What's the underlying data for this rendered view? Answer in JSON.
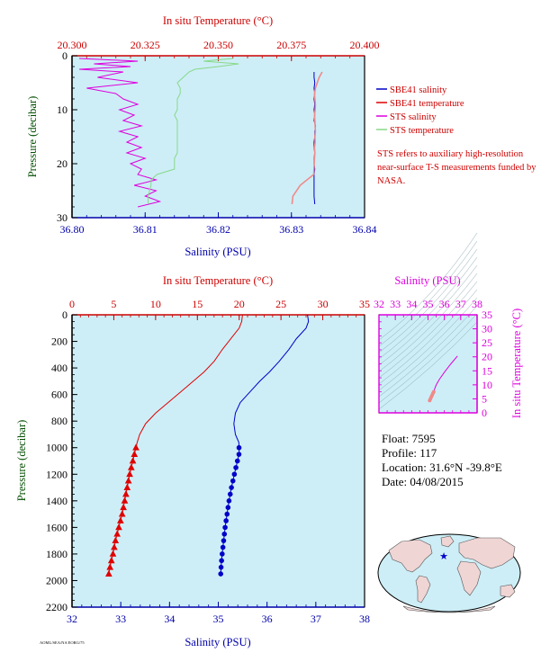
{
  "colors": {
    "plot_bg": "#cdeef7",
    "red": "#e00000",
    "blue": "#0000c8",
    "magenta": "#dd00dd",
    "sbe_temp": "#f08a8a",
    "sts_temp": "#88d888",
    "axis_blue": "#0000aa",
    "axis_red": "#cc0000",
    "axis_green": "#004d00",
    "stroke": "#000000"
  },
  "legend": [
    {
      "label": "SBE41 salinity",
      "color": "#0000c8"
    },
    {
      "label": "SBE41 temperature",
      "color": "#e00000"
    },
    {
      "label": "STS salinity",
      "color": "#dd00dd"
    },
    {
      "label": "STS temperature",
      "color": "#88d888"
    }
  ],
  "note": "STS refers to auxiliary high-resolution near-surface T-S measurements funded by NASA.",
  "info": {
    "float": "Float: 7595",
    "profile": "Profile: 117",
    "location": "Location: 31.6°N -39.8°E",
    "date": "Date: 04/08/2015"
  },
  "footer_code": "AOML/SEA/NA EORG/75",
  "chart_data": [
    {
      "type": "line",
      "name": "near-surface profile",
      "top_axis_label": "In situ Temperature (°C)",
      "top_ticks": [
        "20.300",
        "20.325",
        "20.350",
        "20.375",
        "20.400"
      ],
      "top_range": [
        20.3,
        20.4
      ],
      "bottom_axis_label": "Salinity (PSU)",
      "bottom_ticks": [
        "36.80",
        "36.81",
        "36.82",
        "36.83",
        "36.84"
      ],
      "bottom_range": [
        36.8,
        36.84
      ],
      "ylabel": "Pressure (decibar)",
      "y_ticks": [
        "0",
        "10",
        "20",
        "30"
      ],
      "y_range": [
        0,
        30
      ],
      "series": [
        {
          "name": "SBE41 salinity",
          "axis": "bottom",
          "x": [
            36.8331,
            36.8331,
            36.8332,
            36.8331,
            36.8332,
            36.8331,
            36.8332,
            36.8331,
            36.8332,
            36.8331,
            36.8333,
            36.8332,
            36.8332,
            36.8331,
            36.8331,
            36.8332,
            36.8331,
            36.8331,
            36.8332,
            36.8331,
            36.8331,
            36.8331,
            36.8332
          ],
          "y": [
            3,
            4,
            5,
            6,
            7,
            8,
            9,
            10,
            11,
            12,
            13,
            14,
            15,
            16,
            17,
            18,
            19,
            20,
            21,
            22,
            24,
            26,
            27.5
          ]
        },
        {
          "name": "SBE41 temperature",
          "axis": "top",
          "x": [
            20.3855,
            20.3845,
            20.3838,
            20.3832,
            20.3829,
            20.383,
            20.3832,
            20.3831,
            20.3829,
            20.383,
            20.3831,
            20.3832,
            20.383,
            20.3831,
            20.3829,
            20.383,
            20.3829,
            20.3828,
            20.3827,
            20.3826,
            20.378,
            20.3755,
            20.3752
          ],
          "y": [
            3,
            4,
            5,
            6,
            7,
            8,
            9,
            10,
            11,
            12,
            13,
            14,
            15,
            16,
            17,
            18,
            19,
            20,
            21,
            22,
            24,
            26,
            27.5
          ]
        },
        {
          "name": "STS salinity",
          "axis": "bottom",
          "x": [
            36.801,
            36.809,
            36.803,
            36.808,
            36.801,
            36.807,
            36.8035,
            36.809,
            36.802,
            36.806,
            36.807,
            36.809,
            36.8065,
            36.8085,
            36.807,
            36.8095,
            36.8065,
            36.809,
            36.8075,
            36.8095,
            36.8075,
            36.81,
            36.808,
            36.8095,
            36.809,
            36.8115,
            36.8085,
            36.8115,
            36.81,
            36.812,
            36.809
          ],
          "y": [
            0.5,
            1,
            1.5,
            2,
            2.5,
            3,
            4,
            5,
            6,
            7,
            8,
            9,
            10,
            11,
            12,
            13,
            14,
            15,
            16,
            17,
            18,
            19,
            20,
            21,
            22,
            23,
            24,
            25,
            26,
            27,
            28
          ]
        },
        {
          "name": "STS temperature",
          "axis": "top",
          "x": [
            20.355,
            20.345,
            20.357,
            20.35,
            20.342,
            20.34,
            20.338,
            20.336,
            20.337,
            20.337,
            20.336,
            20.336,
            20.336,
            20.335,
            20.336,
            20.336,
            20.336,
            20.336,
            20.336,
            20.336,
            20.336,
            20.335,
            20.335,
            20.329,
            20.327,
            20.327,
            20.326,
            20.326
          ],
          "y": [
            0.5,
            1,
            1.5,
            2,
            2.5,
            3,
            4,
            5,
            6,
            7,
            8,
            9,
            10,
            11,
            12,
            13,
            14,
            15,
            16,
            17,
            18,
            19,
            21,
            22,
            23,
            24,
            26,
            27.5
          ]
        }
      ]
    },
    {
      "type": "line",
      "name": "full-depth profile",
      "top_axis_label": "In situ Temperature (°C)",
      "top_ticks": [
        "0",
        "5",
        "10",
        "15",
        "20",
        "25",
        "30",
        "35"
      ],
      "top_range": [
        0,
        35
      ],
      "bottom_axis_label": "Salinity (PSU)",
      "bottom_ticks": [
        "32",
        "33",
        "34",
        "35",
        "36",
        "37",
        "38"
      ],
      "bottom_range": [
        32,
        38
      ],
      "ylabel": "Pressure (decibar)",
      "y_ticks": [
        "0",
        "200",
        "400",
        "600",
        "800",
        "1000",
        "1200",
        "1400",
        "1600",
        "1800",
        "2000",
        "2200"
      ],
      "y_range": [
        0,
        2200
      ],
      "series": [
        {
          "name": "SBE41 temperature",
          "axis": "top",
          "color": "#e00000",
          "x": [
            20.4,
            20.3,
            20.0,
            19.0,
            18.0,
            17.0,
            15.8,
            14.5,
            13.0,
            11.5,
            10.0,
            8.8,
            8.1,
            7.8,
            7.5,
            7.2,
            6.9,
            6.6,
            6.3,
            6.0,
            5.6,
            5.2,
            4.9,
            4.6,
            4.4
          ],
          "y": [
            0,
            50,
            100,
            180,
            260,
            350,
            430,
            500,
            580,
            660,
            740,
            820,
            900,
            960,
            1040,
            1120,
            1200,
            1300,
            1400,
            1500,
            1600,
            1700,
            1800,
            1880,
            1950
          ]
        },
        {
          "name": "SBE41 salinity",
          "axis": "bottom",
          "color": "#0000c8",
          "x": [
            36.83,
            36.85,
            36.8,
            36.6,
            36.45,
            36.25,
            36.05,
            35.85,
            35.65,
            35.45,
            35.35,
            35.32,
            35.35,
            35.42,
            35.43,
            35.38,
            35.33,
            35.27,
            35.22,
            35.18,
            35.14,
            35.11,
            35.08,
            35.06,
            35.05
          ],
          "y": [
            0,
            50,
            100,
            180,
            260,
            350,
            430,
            500,
            580,
            660,
            740,
            820,
            900,
            960,
            1040,
            1120,
            1200,
            1300,
            1400,
            1500,
            1600,
            1700,
            1800,
            1880,
            1950
          ]
        }
      ],
      "marker_depths": [
        1000,
        1050,
        1100,
        1150,
        1200,
        1250,
        1300,
        1350,
        1400,
        1450,
        1500,
        1550,
        1600,
        1650,
        1700,
        1750,
        1800,
        1850,
        1900,
        1950
      ]
    },
    {
      "type": "scatter",
      "name": "T-S diagram",
      "top_axis_label": "Salinity (PSU)",
      "top_ticks": [
        "32",
        "33",
        "34",
        "35",
        "36",
        "37",
        "38"
      ],
      "top_range": [
        32,
        38
      ],
      "right_axis_label": "In situ Temperature (°C)",
      "right_ticks": [
        "0",
        "5",
        "10",
        "15",
        "20",
        "25",
        "30",
        "35"
      ],
      "right_range": [
        0,
        35
      ],
      "series": [
        {
          "name": "T-S",
          "x": [
            36.8,
            36.4,
            36.0,
            35.7,
            35.5,
            35.4,
            35.35,
            35.3,
            35.25,
            35.2,
            35.15,
            35.1
          ],
          "y": [
            20.3,
            17.5,
            14.5,
            12.0,
            10.0,
            8.5,
            7.5,
            7.0,
            6.3,
            5.7,
            5.0,
            4.4
          ]
        }
      ]
    }
  ]
}
